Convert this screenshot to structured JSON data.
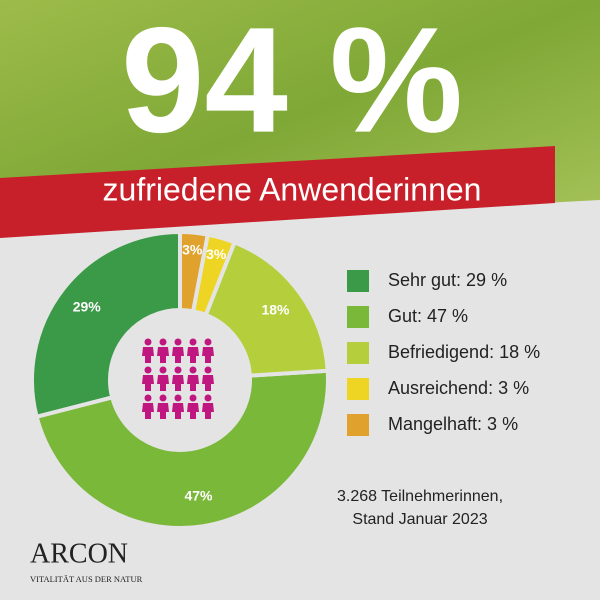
{
  "headline": "94 %",
  "banner": "zufriedene Anwenderinnen",
  "chart_data": {
    "type": "donut",
    "categories": [
      "Sehr gut: 29 %",
      "Gut: 47 %",
      "Befriedigend: 18 %",
      "Ausreichend: 3 %",
      "Mangelhaft: 3 %"
    ],
    "values": [
      29,
      47,
      18,
      3,
      3
    ],
    "value_labels": [
      "29%",
      "47%",
      "18%",
      "3%",
      "3%"
    ],
    "colors": [
      "#3b9a47",
      "#7ab83a",
      "#b5cf3c",
      "#efd523",
      "#e0a22d"
    ]
  },
  "footer": {
    "line1": "3.268  Teilnehmerinnen,",
    "line2": "Stand Januar 2023"
  },
  "logo": {
    "name": "ARCON",
    "tagline": "VITALITÄT AUS DER NATUR"
  }
}
